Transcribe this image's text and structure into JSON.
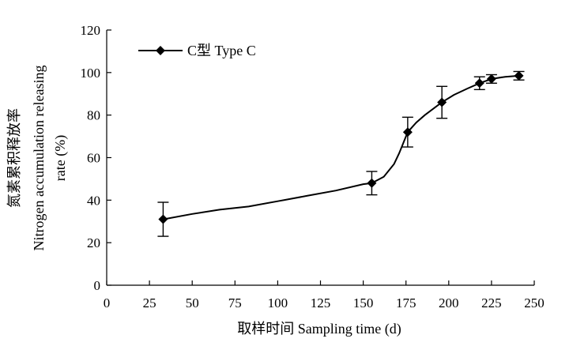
{
  "chart_data": {
    "type": "line",
    "title": "",
    "xlabel": "取样时间 Sampling time (d)",
    "ylabel_lines": [
      "氮素累积释放率",
      "Nitrogen accumulation releasing",
      "rate (%)"
    ],
    "xlim": [
      0,
      250
    ],
    "ylim": [
      0,
      120
    ],
    "x_ticks": [
      0,
      25,
      50,
      75,
      100,
      125,
      150,
      175,
      200,
      225,
      250
    ],
    "y_ticks": [
      0,
      20,
      40,
      60,
      80,
      100,
      120
    ],
    "grid": false,
    "legend_position": "top-left",
    "series": [
      {
        "name": "C型 Type C",
        "color": "#000000",
        "marker": "diamond",
        "points": [
          {
            "x": 33,
            "y": 31,
            "err": 8
          },
          {
            "x": 155,
            "y": 48,
            "err": 5.5
          },
          {
            "x": 176,
            "y": 72,
            "err": 7
          },
          {
            "x": 196,
            "y": 86,
            "err": 7.5
          },
          {
            "x": 218,
            "y": 95,
            "err": 3
          },
          {
            "x": 225,
            "y": 97,
            "err": 2
          },
          {
            "x": 241,
            "y": 98.5,
            "err": 2
          }
        ],
        "curve": [
          [
            33,
            31
          ],
          [
            50,
            33.5
          ],
          [
            66,
            35.5
          ],
          [
            83,
            37
          ],
          [
            100,
            39.5
          ],
          [
            117,
            42
          ],
          [
            134,
            44.5
          ],
          [
            150,
            47.5
          ],
          [
            155,
            48
          ],
          [
            162,
            51
          ],
          [
            168,
            57
          ],
          [
            171,
            62
          ],
          [
            176,
            72
          ],
          [
            181,
            76.5
          ],
          [
            186,
            80
          ],
          [
            191,
            83
          ],
          [
            196,
            86
          ],
          [
            203,
            89.5
          ],
          [
            211,
            92.5
          ],
          [
            218,
            95
          ],
          [
            225,
            97
          ],
          [
            233,
            98
          ],
          [
            241,
            98.5
          ]
        ]
      }
    ]
  }
}
